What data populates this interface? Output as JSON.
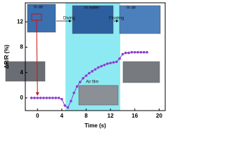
{
  "chart_data": {
    "type": "line",
    "xlabel": "Time (s)",
    "ylabel": "ΔR/R (%)",
    "xlim": [
      -2,
      21
    ],
    "xticks": [
      0,
      4,
      8,
      12,
      16,
      20
    ],
    "ylim": [
      -2,
      15
    ],
    "yticks": [
      0,
      4,
      8,
      12
    ],
    "shaded_region": {
      "xmin": 4.6,
      "xmax": 13.6,
      "color": "#8eeaf2"
    },
    "annotations": [
      "In air",
      "Diving",
      "In water",
      "Floating",
      "In air",
      "Air film"
    ],
    "series": [
      {
        "color": "#8a3fd1",
        "x": [
          -1,
          -0.5,
          0,
          0.5,
          1,
          1.5,
          2,
          2.5,
          3,
          3.5,
          4,
          4.5,
          5,
          5.5,
          6,
          6.5,
          7,
          7.5,
          8,
          8.5,
          9,
          9.5,
          10,
          10.5,
          11,
          11.5,
          12,
          12.5,
          13,
          13.5,
          14,
          14.5,
          15,
          15.5,
          16,
          16.5,
          17,
          17.5,
          18
        ],
        "values": [
          0,
          0,
          0,
          0,
          0,
          0,
          0,
          0,
          0,
          0,
          -0.2,
          -1.2,
          -1.5,
          -0.5,
          0.8,
          1.8,
          2.5,
          3.1,
          3.5,
          3.9,
          4.2,
          4.5,
          4.8,
          5,
          5.2,
          5.4,
          5.5,
          5.6,
          5.7,
          6.2,
          6.9,
          7.1,
          7.1,
          7.2,
          7.2,
          7.2,
          7.2,
          7.2,
          7.2
        ]
      }
    ]
  }
}
